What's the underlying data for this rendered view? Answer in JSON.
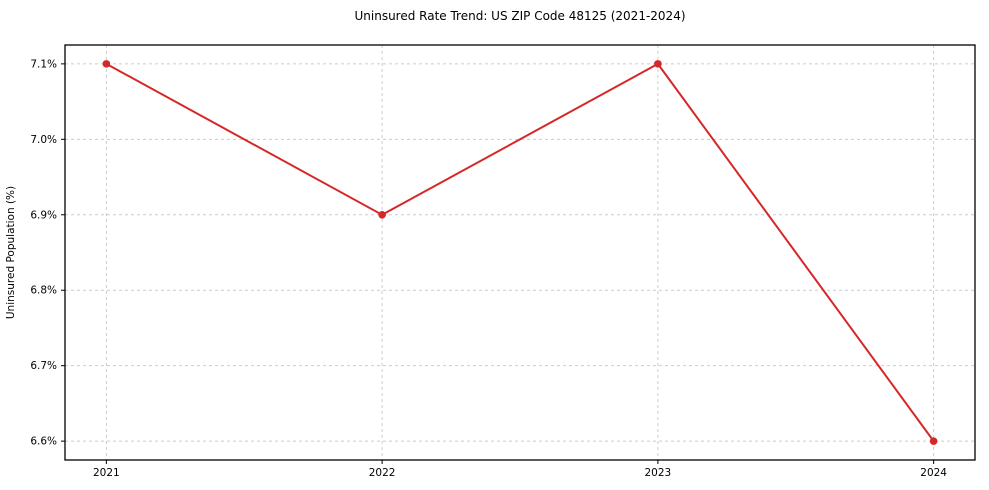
{
  "chart_data": {
    "type": "line",
    "title": "Uninsured Rate Trend: US ZIP Code 48125 (2021-2024)",
    "xlabel": "",
    "ylabel": "Uninsured Population (%)",
    "categories": [
      "2021",
      "2022",
      "2023",
      "2024"
    ],
    "x": [
      2021,
      2022,
      2023,
      2024
    ],
    "series": [
      {
        "name": "Uninsured Rate",
        "values": [
          7.1,
          6.9,
          7.1,
          6.6
        ],
        "color": "#d62728"
      }
    ],
    "yticks": [
      6.6,
      6.7,
      6.8,
      6.9,
      7.0,
      7.1
    ],
    "ytick_labels": [
      "6.6%",
      "6.7%",
      "6.8%",
      "6.9%",
      "7.0%",
      "7.1%"
    ],
    "xlim": [
      2020.85,
      2024.15
    ],
    "ylim": [
      6.575,
      7.125
    ],
    "grid": true,
    "grid_style": "dashed",
    "grid_color": "#cccccc",
    "frame_color": "#000000",
    "tick_color": "#000000",
    "text_color": "#000000",
    "background": "#ffffff",
    "legend_position": "none"
  }
}
